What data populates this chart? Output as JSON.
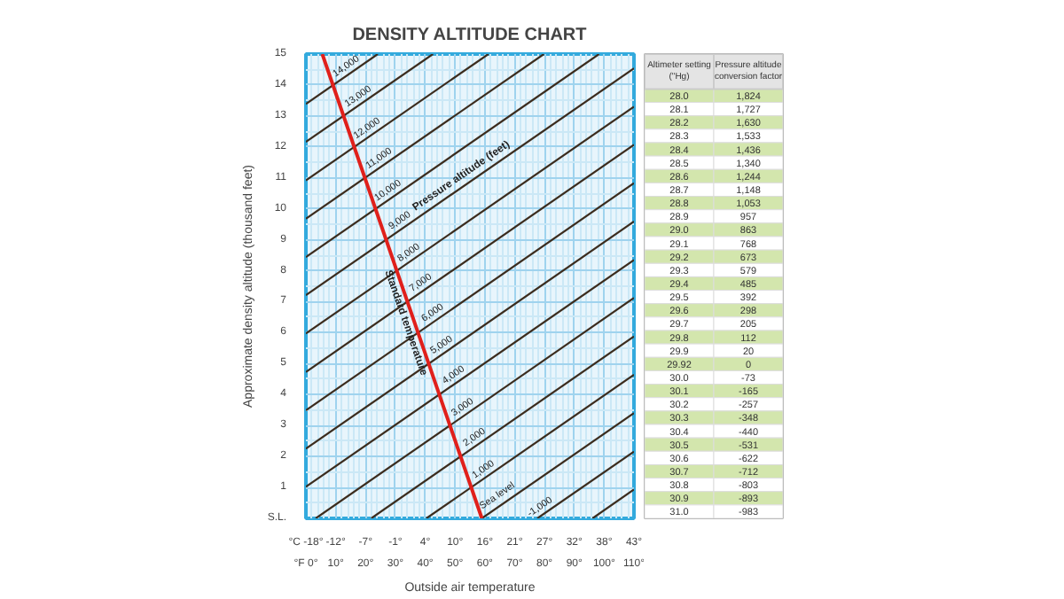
{
  "chart_data": [
    {
      "type": "line",
      "title": "DENSITY ALTITUDE CHART",
      "xlabel": "Outside air temperature",
      "ylabel": "Approximate density altitude (thousand feet)",
      "xlim": [
        0,
        110
      ],
      "ylim": [
        0,
        15
      ],
      "grid": true,
      "line_style": "solid",
      "xticks": [
        {
          "value": 0,
          "label": "°F 0°"
        },
        {
          "value": 10,
          "label": "10°"
        },
        {
          "value": 20,
          "label": "20°"
        },
        {
          "value": 30,
          "label": "30°"
        },
        {
          "value": 40,
          "label": "40°"
        },
        {
          "value": 50,
          "label": "50°"
        },
        {
          "value": 60,
          "label": "60°"
        },
        {
          "value": 70,
          "label": "70°"
        },
        {
          "value": 80,
          "label": "80°"
        },
        {
          "value": 90,
          "label": "90°"
        },
        {
          "value": 100,
          "label": "100°"
        },
        {
          "value": 110,
          "label": "110°"
        }
      ],
      "x2lim": [
        -17.78,
        43.33
      ],
      "x2ticks": [
        {
          "value": -17.78,
          "label": "°C -18°"
        },
        {
          "value": -12.22,
          "label": "-12°"
        },
        {
          "value": -6.67,
          "label": "-7°"
        },
        {
          "value": -1.11,
          "label": "-1°"
        },
        {
          "value": 4.44,
          "label": "4°"
        },
        {
          "value": 10,
          "label": "10°"
        },
        {
          "value": 15.56,
          "label": "16°"
        },
        {
          "value": 21.11,
          "label": "21°"
        },
        {
          "value": 26.67,
          "label": "27°"
        },
        {
          "value": 32.22,
          "label": "32°"
        },
        {
          "value": 37.78,
          "label": "38°"
        },
        {
          "value": 43.33,
          "label": "43°"
        }
      ],
      "yticks": [
        {
          "value": 0,
          "label": "S.L."
        },
        1,
        2,
        3,
        4,
        5,
        6,
        7,
        8,
        9,
        10,
        11,
        12,
        13,
        14,
        15
      ],
      "series": [
        {
          "color": "#3b2c1e",
          "x": [
            96.1,
            110
          ],
          "values": [
            0,
            0.93
          ]
        },
        {
          "color": "#3b2c1e",
          "x": [
            77.6,
            110
          ],
          "values": [
            0,
            2.16
          ]
        },
        {
          "color": "#3b2c1e",
          "x": [
            59,
            110
          ],
          "values": [
            0,
            3.4
          ]
        },
        {
          "color": "#3b2c1e",
          "x": [
            40.4,
            110
          ],
          "values": [
            0,
            4.64
          ]
        },
        {
          "color": "#3b2c1e",
          "x": [
            21.9,
            110
          ],
          "values": [
            0,
            5.88
          ]
        },
        {
          "color": "#3b2c1e",
          "x": [
            3.3,
            110
          ],
          "values": [
            0,
            7.12
          ]
        },
        {
          "color": "#3b2c1e",
          "x": [
            0,
            110
          ],
          "values": [
            1.02,
            8.35
          ]
        },
        {
          "color": "#3b2c1e",
          "x": [
            0,
            110
          ],
          "values": [
            2.25,
            9.59
          ]
        },
        {
          "color": "#3b2c1e",
          "x": [
            0,
            110
          ],
          "values": [
            3.49,
            10.83
          ]
        },
        {
          "color": "#3b2c1e",
          "x": [
            0,
            110
          ],
          "values": [
            4.73,
            12.07
          ]
        },
        {
          "color": "#3b2c1e",
          "x": [
            0,
            110
          ],
          "values": [
            5.97,
            13.3
          ]
        },
        {
          "color": "#3b2c1e",
          "x": [
            0,
            110
          ],
          "values": [
            7.21,
            14.54
          ]
        },
        {
          "color": "#3b2c1e",
          "x": [
            0,
            98.3
          ],
          "values": [
            8.44,
            15
          ]
        },
        {
          "color": "#3b2c1e",
          "x": [
            0,
            79.8
          ],
          "values": [
            9.68,
            15
          ]
        },
        {
          "color": "#3b2c1e",
          "x": [
            0,
            61.2
          ],
          "values": [
            10.92,
            15
          ]
        },
        {
          "color": "#3b2c1e",
          "x": [
            0,
            42.6
          ],
          "values": [
            12.16,
            15
          ]
        },
        {
          "color": "#3b2c1e",
          "x": [
            0,
            24.1
          ],
          "values": [
            13.39,
            15
          ]
        },
        {
          "color": "#e0201b",
          "x": [
            59,
            5.5
          ],
          "values": [
            0,
            15
          ]
        }
      ],
      "annotations": [
        {
          "text": "14,000",
          "x": 15,
          "y": 14.39
        },
        {
          "text": "13,000",
          "x": 19,
          "y": 13.42
        },
        {
          "text": "12,000",
          "x": 22,
          "y": 12.39
        },
        {
          "text": "11,000",
          "x": 26,
          "y": 11.42
        },
        {
          "text": "10,000",
          "x": 29,
          "y": 10.38
        },
        {
          "text": "9,000",
          "x": 33,
          "y": 9.41
        },
        {
          "text": "8,000",
          "x": 36,
          "y": 8.37
        },
        {
          "text": "7,000",
          "x": 40,
          "y": 7.4
        },
        {
          "text": "6,000",
          "x": 44,
          "y": 6.43
        },
        {
          "text": "5,000",
          "x": 47,
          "y": 5.39
        },
        {
          "text": "4,000",
          "x": 51,
          "y": 4.42
        },
        {
          "text": "3,000",
          "x": 54,
          "y": 3.38
        },
        {
          "text": "2,000",
          "x": 58,
          "y": 2.41
        },
        {
          "text": "1,000",
          "x": 61,
          "y": 1.37
        },
        {
          "text": "Sea level",
          "x": 66,
          "y": 0.47
        },
        {
          "text": "-1,000",
          "x": 80,
          "y": 0.16
        },
        {
          "text": "Pressure altitude (feet)",
          "x": 54,
          "y": 10.8
        },
        {
          "text": "Standard temperature",
          "x": 36,
          "y": 6.4
        }
      ]
    },
    {
      "type": "heatmap",
      "ylabel": "Altimeter setting (\"Hg)",
      "categories": [
        "Pressure altitude conversion factor"
      ],
      "y_categories": [
        "28.0",
        "28.1",
        "28.2",
        "28.3",
        "28.4",
        "28.5",
        "28.6",
        "28.7",
        "28.8",
        "28.9",
        "29.0",
        "29.1",
        "29.2",
        "29.3",
        "29.4",
        "29.5",
        "29.6",
        "29.7",
        "29.8",
        "29.9",
        "29.92",
        "30.0",
        "30.1",
        "30.2",
        "30.3",
        "30.4",
        "30.5",
        "30.6",
        "30.7",
        "30.8",
        "30.9",
        "31.0"
      ],
      "cell_labels": [
        [
          "1,824"
        ],
        [
          "1,727"
        ],
        [
          "1,630"
        ],
        [
          "1,533"
        ],
        [
          "1,436"
        ],
        [
          "1,340"
        ],
        [
          "1,244"
        ],
        [
          "1,148"
        ],
        [
          "1,053"
        ],
        [
          "957"
        ],
        [
          "863"
        ],
        [
          "768"
        ],
        [
          "673"
        ],
        [
          "579"
        ],
        [
          "485"
        ],
        [
          "392"
        ],
        [
          "298"
        ],
        [
          "205"
        ],
        [
          "112"
        ],
        [
          "20"
        ],
        [
          "0"
        ],
        [
          "-73"
        ],
        [
          "-165"
        ],
        [
          "-257"
        ],
        [
          "-348"
        ],
        [
          "-440"
        ],
        [
          "-531"
        ],
        [
          "-622"
        ],
        [
          "-712"
        ],
        [
          "-803"
        ],
        [
          "-893"
        ],
        [
          "-983"
        ]
      ],
      "cells": [
        [
          1824
        ],
        [
          1727
        ],
        [
          1630
        ],
        [
          1533
        ],
        [
          1436
        ],
        [
          1340
        ],
        [
          1244
        ],
        [
          1148
        ],
        [
          1053
        ],
        [
          957
        ],
        [
          863
        ],
        [
          768
        ],
        [
          673
        ],
        [
          579
        ],
        [
          485
        ],
        [
          392
        ],
        [
          298
        ],
        [
          205
        ],
        [
          112
        ],
        [
          20
        ],
        [
          0
        ],
        [
          -73
        ],
        [
          -165
        ],
        [
          -257
        ],
        [
          -348
        ],
        [
          -440
        ],
        [
          -531
        ],
        [
          -622
        ],
        [
          -712
        ],
        [
          -803
        ],
        [
          -893
        ],
        [
          -983
        ]
      ]
    }
  ]
}
